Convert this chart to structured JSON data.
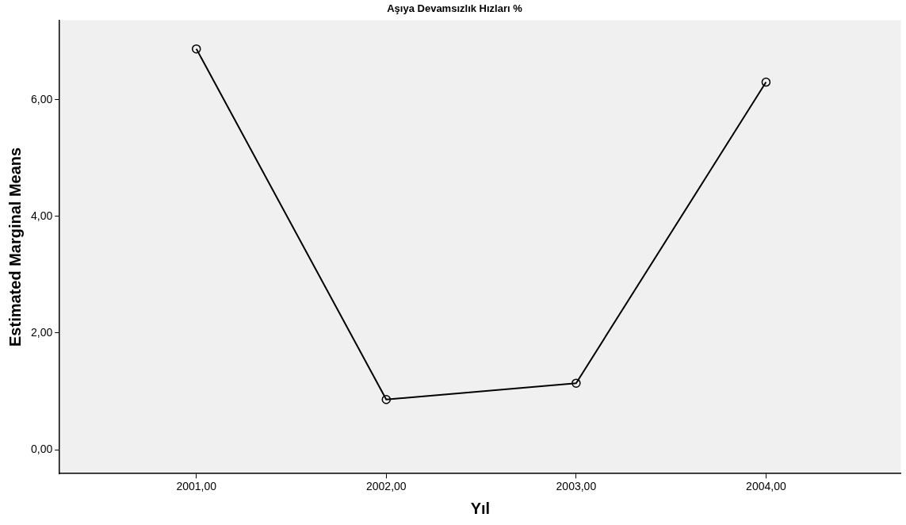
{
  "chart_data": {
    "type": "line",
    "title": "Aşıya Devamsızlık Hızları %",
    "xlabel": "Yıl",
    "ylabel": "Estimated Marginal Means",
    "x": [
      2001,
      2002,
      2003,
      2004
    ],
    "series": [
      {
        "color": "#000000",
        "values": [
          6.87,
          0.86,
          1.14,
          6.3
        ]
      }
    ],
    "xlim": [
      2000.28,
      2004.71
    ],
    "xticks": [
      {
        "value": 2001,
        "label": "2001,00"
      },
      {
        "value": 2002,
        "label": "2002,00"
      },
      {
        "value": 2003,
        "label": "2003,00"
      },
      {
        "value": 2004,
        "label": "2004,00"
      }
    ],
    "ylim": [
      -0.41,
      7.36
    ],
    "yticks": [
      {
        "value": 0,
        "label": "0,00"
      },
      {
        "value": 2,
        "label": "2,00"
      },
      {
        "value": 4,
        "label": "4,00"
      },
      {
        "value": 6,
        "label": "6,00"
      }
    ],
    "grid": false,
    "legend": false,
    "marker": "circle",
    "line_style": "solid"
  }
}
